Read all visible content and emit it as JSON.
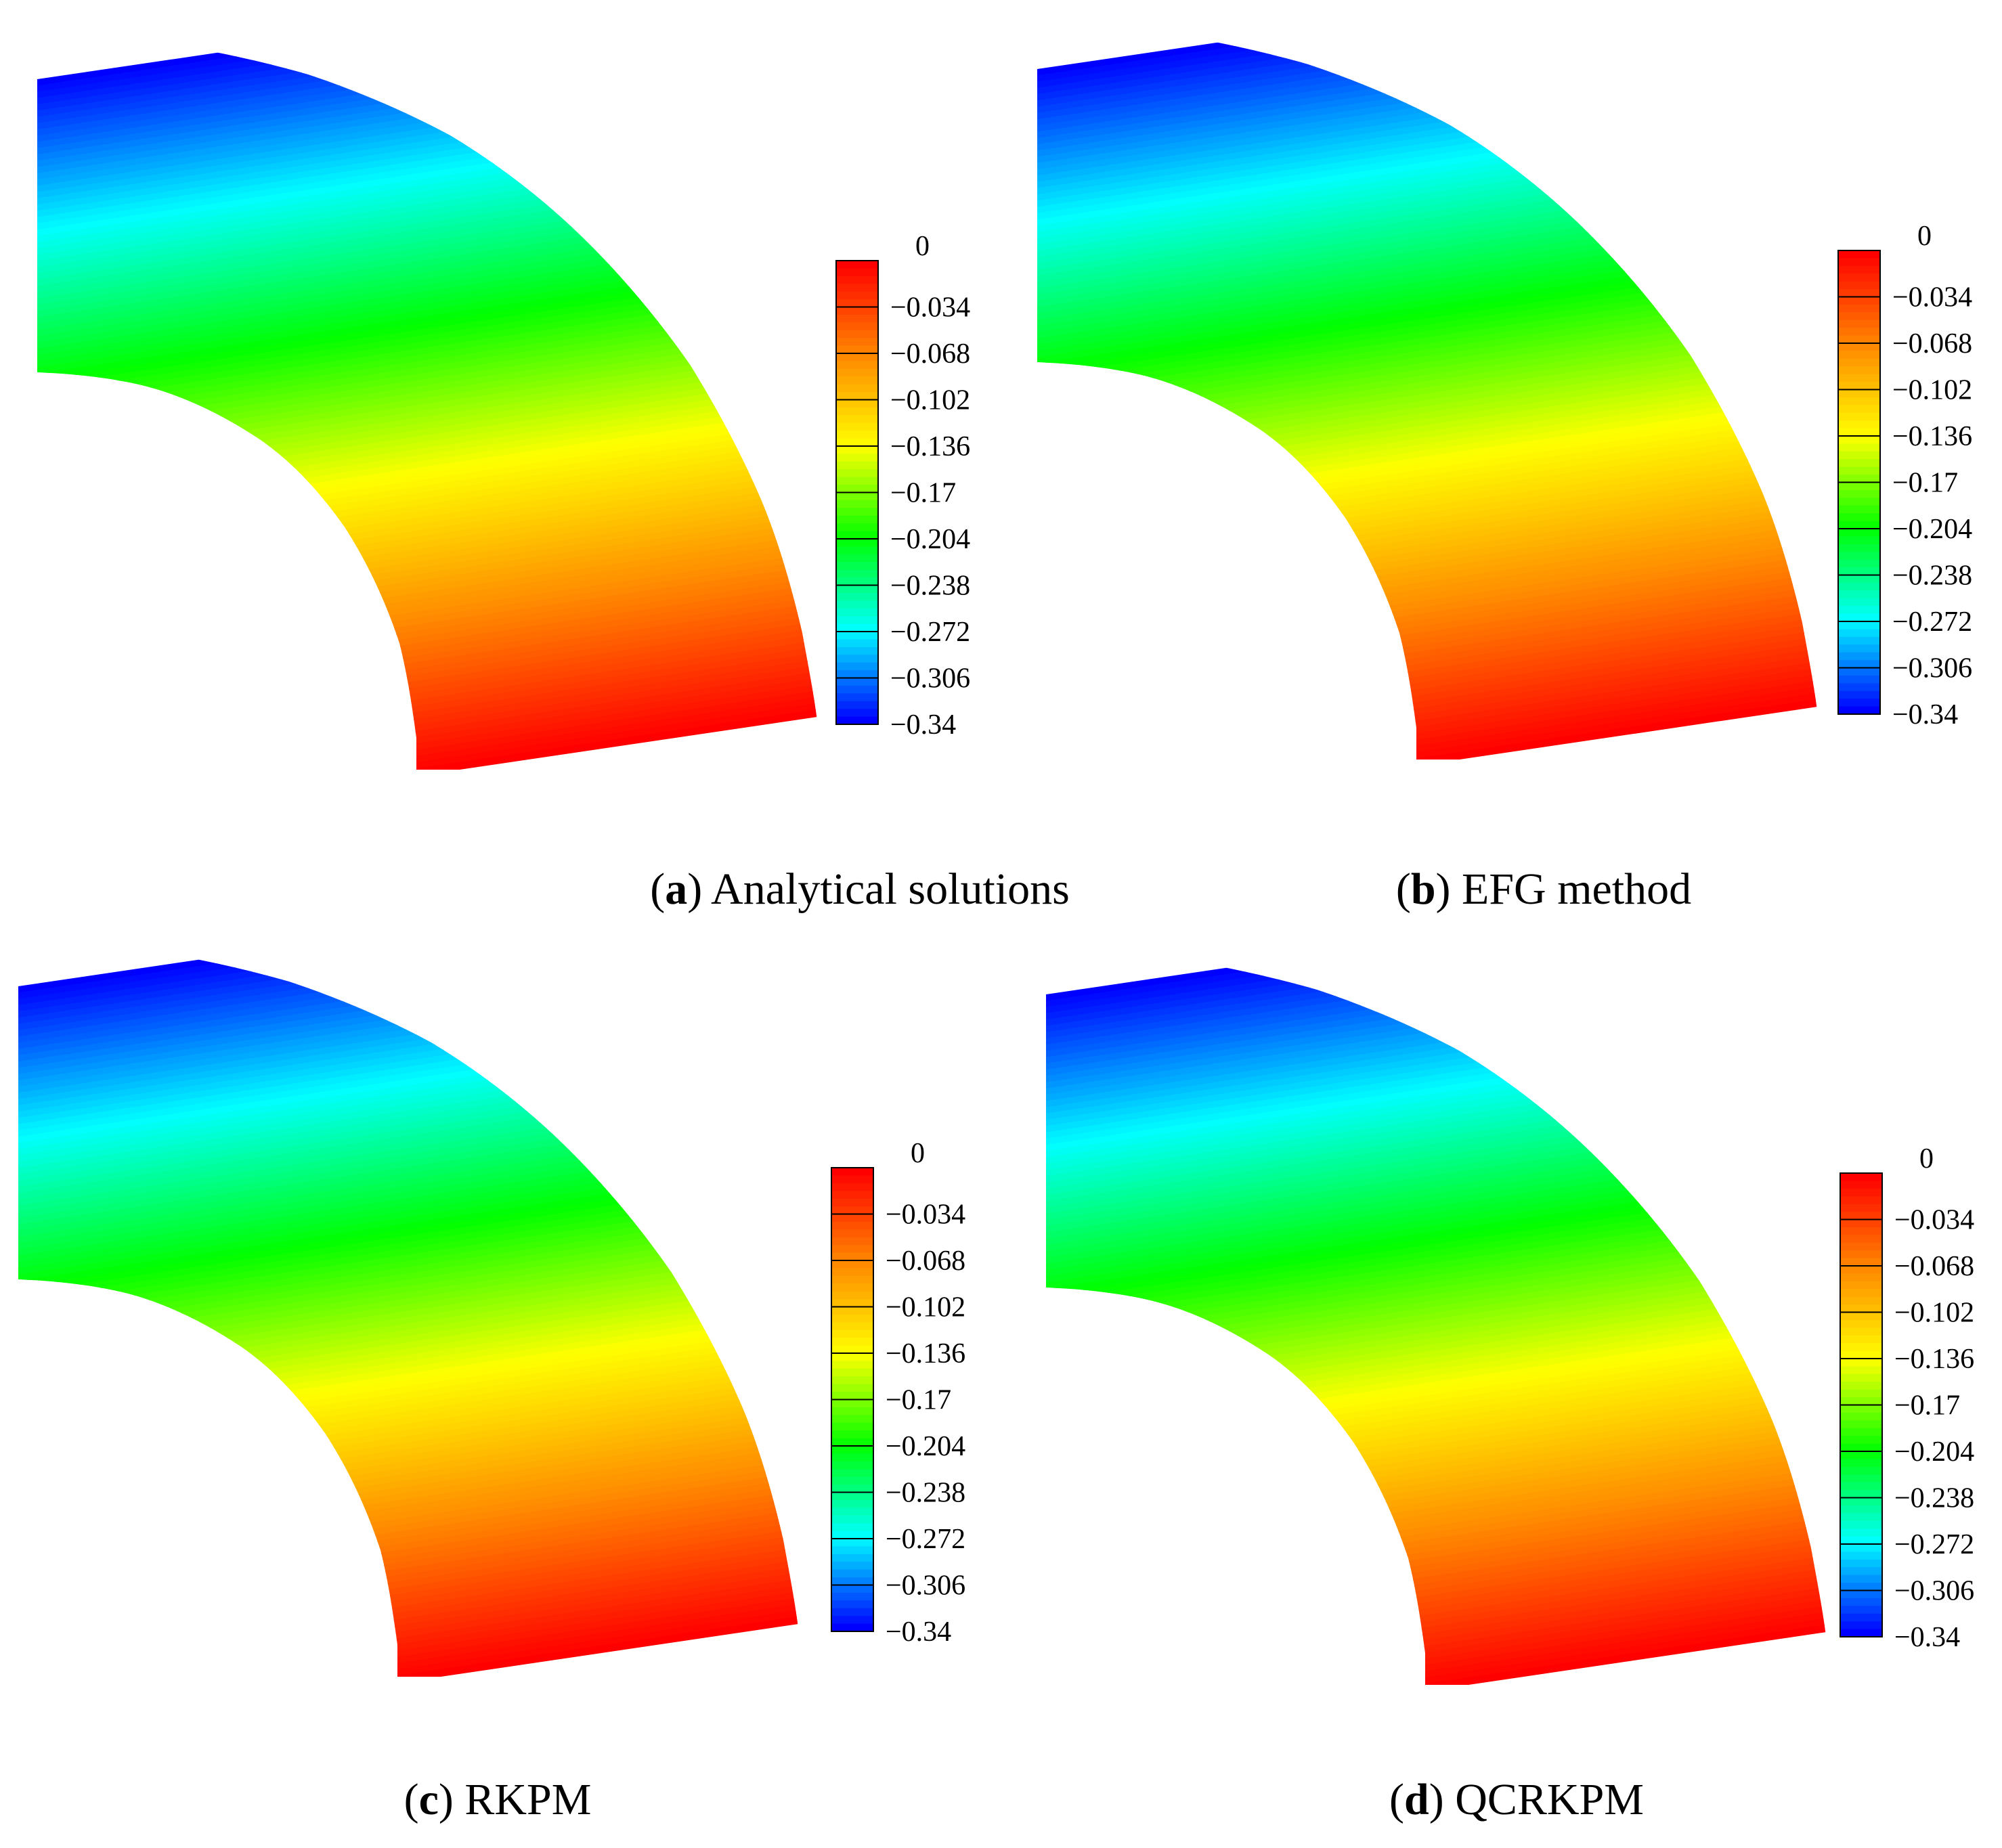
{
  "chart_data": [
    {
      "type": "heatmap",
      "caption_letter": "a",
      "caption_text": ") Analytical solutions",
      "colorbar": {
        "min": -0.34,
        "max": 0,
        "ticks": [
          "0",
          "−0.034",
          "−0.068",
          "−0.102",
          "−0.136",
          "−0.17",
          "−0.204",
          "−0.238",
          "−0.272",
          "−0.306",
          "−0.34"
        ],
        "colors": [
          "#ff0000",
          "#ff8800",
          "#ffff00",
          "#00ff00",
          "#00ffff",
          "#0000ff"
        ]
      }
    },
    {
      "type": "heatmap",
      "caption_letter": "b",
      "caption_text": ") EFG method",
      "colorbar": {
        "min": -0.34,
        "max": 0,
        "ticks": [
          "0",
          "−0.034",
          "−0.068",
          "−0.102",
          "−0.136",
          "−0.17",
          "−0.204",
          "−0.238",
          "−0.272",
          "−0.306",
          "−0.34"
        ],
        "colors": [
          "#ff0000",
          "#ff8800",
          "#ffff00",
          "#00ff00",
          "#00ffff",
          "#0000ff"
        ]
      }
    },
    {
      "type": "heatmap",
      "caption_letter": "c",
      "caption_text": ") RKPM",
      "colorbar": {
        "min": -0.34,
        "max": 0,
        "ticks": [
          "0",
          "−0.034",
          "−0.068",
          "−0.102",
          "−0.136",
          "−0.17",
          "−0.204",
          "−0.238",
          "−0.272",
          "−0.306",
          "−0.34"
        ],
        "colors": [
          "#ff0000",
          "#ff8800",
          "#ffff00",
          "#00ff00",
          "#00ffff",
          "#0000ff"
        ]
      }
    },
    {
      "type": "heatmap",
      "caption_letter": "d",
      "caption_text": ") QCRKPM",
      "colorbar": {
        "min": -0.34,
        "max": 0,
        "ticks": [
          "0",
          "−0.034",
          "−0.068",
          "−0.102",
          "−0.136",
          "−0.17",
          "−0.204",
          "−0.238",
          "−0.272",
          "−0.306",
          "−0.34"
        ],
        "colors": [
          "#ff0000",
          "#ff8800",
          "#ffff00",
          "#00ff00",
          "#00ffff",
          "#0000ff"
        ]
      }
    }
  ]
}
